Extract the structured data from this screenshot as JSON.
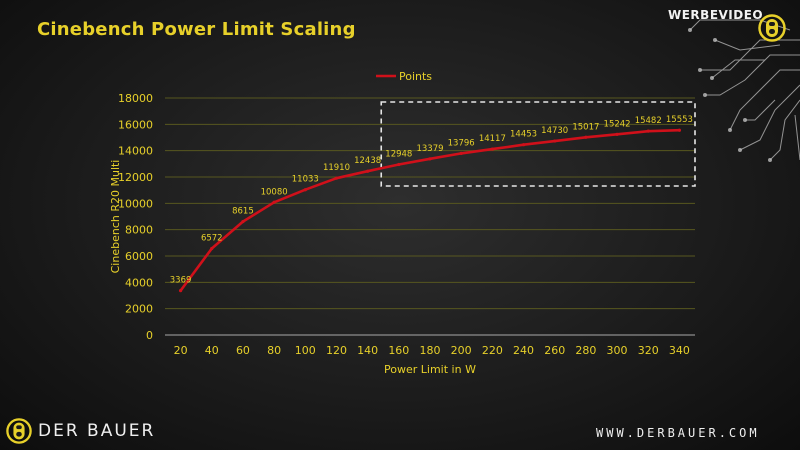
{
  "slide": {
    "title": "Cinebench Power Limit Scaling",
    "brand_tag": "WERBEVIDEO",
    "footer_logo_text": "DER BAUER",
    "footer_url": "WWW.DERBAUER.COM"
  },
  "colors": {
    "accent": "#e7d02a",
    "series": "#d0101a",
    "gridline": "#57571f",
    "text_light": "#f0f0f0"
  },
  "chart_data": {
    "type": "line",
    "title": "",
    "xlabel": "Power Limit in W",
    "ylabel": "Cinebench R20 Multi",
    "x": [
      20,
      40,
      60,
      80,
      100,
      120,
      140,
      160,
      180,
      200,
      220,
      240,
      260,
      280,
      300,
      320,
      340
    ],
    "series": [
      {
        "name": "Points",
        "values": [
          3369,
          6572,
          8615,
          10080,
          11033,
          11910,
          12438,
          12948,
          13379,
          13796,
          14117,
          14453,
          14730,
          15017,
          15242,
          15482,
          15553
        ]
      }
    ],
    "ylim": [
      0,
      18000
    ],
    "yticks": [
      0,
      2000,
      4000,
      6000,
      8000,
      10000,
      12000,
      14000,
      16000,
      18000
    ],
    "grid": "horizontal",
    "legend": "top-center",
    "highlight_box_range": [
      150,
      340
    ]
  }
}
